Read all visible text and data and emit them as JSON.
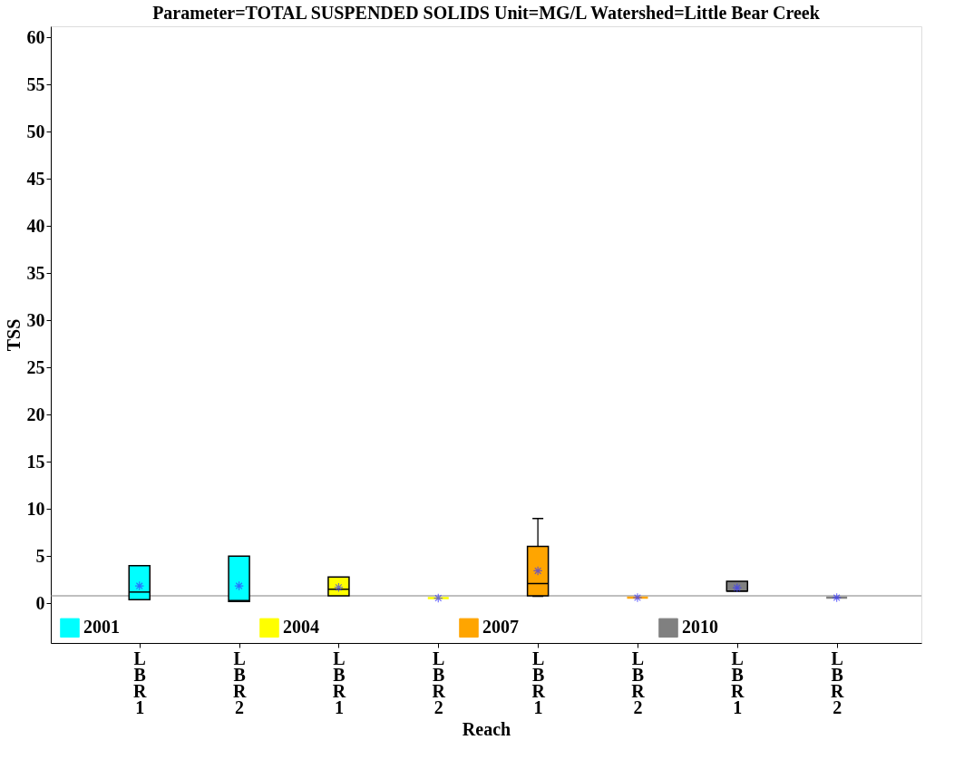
{
  "chart_data": {
    "type": "box",
    "title": "Parameter=TOTAL SUSPENDED SOLIDS Unit=MG/L Watershed=Little Bear Creek",
    "xlabel": "Reach",
    "ylabel": "TSS",
    "categories": [
      "LBR1",
      "LBR2",
      "LBR1",
      "LBR2",
      "LBR1",
      "LBR2",
      "LBR1",
      "LBR2"
    ],
    "series": [
      {
        "name": "2001",
        "color": "#00ffff",
        "boxes": [
          {
            "low": 0.4,
            "q1": 0.4,
            "median": 1.2,
            "q3": 4.0,
            "high": 4.0,
            "mean": 1.85
          },
          {
            "low": 0.2,
            "q1": 0.2,
            "median": 0.3,
            "q3": 5.0,
            "high": 5.0,
            "mean": 1.85
          },
          null,
          null,
          null,
          null,
          null,
          null
        ]
      },
      {
        "name": "2004",
        "color": "#ffff00",
        "boxes": [
          null,
          null,
          {
            "low": 0.8,
            "q1": 0.8,
            "median": 1.5,
            "q3": 2.8,
            "high": 2.8,
            "mean": 1.7
          },
          {
            "low": 0.55,
            "q1": 0.55,
            "median": 0.55,
            "q3": 0.55,
            "high": 0.55,
            "mean": 0.55
          },
          null,
          null,
          null,
          null
        ]
      },
      {
        "name": "2007",
        "color": "#ffa500",
        "boxes": [
          null,
          null,
          null,
          null,
          {
            "low": 0.75,
            "q1": 0.8,
            "median": 2.1,
            "q3": 6.05,
            "high": 9.0,
            "mean": 3.45
          },
          {
            "low": 0.6,
            "q1": 0.6,
            "median": 0.6,
            "q3": 0.6,
            "high": 0.6,
            "mean": 0.6
          },
          null,
          null
        ]
      },
      {
        "name": "2010",
        "color": "#808080",
        "boxes": [
          null,
          null,
          null,
          null,
          null,
          null,
          {
            "low": 1.3,
            "q1": 1.3,
            "median": 1.3,
            "q3": 2.35,
            "high": 2.35,
            "mean": 1.65
          },
          {
            "low": 0.6,
            "q1": 0.6,
            "median": 0.6,
            "q3": 0.6,
            "high": 0.6,
            "mean": 0.6
          }
        ]
      }
    ],
    "ylim": [
      -4.2,
      61.2
    ],
    "yticks": [
      0,
      5,
      10,
      15,
      20,
      25,
      30,
      35,
      40,
      45,
      50,
      55,
      60
    ],
    "ref_lines": [
      {
        "axis": "y",
        "value": 0.8,
        "color": "#808080",
        "line_style": "solid"
      }
    ],
    "grid": false,
    "legend": "bottom"
  }
}
